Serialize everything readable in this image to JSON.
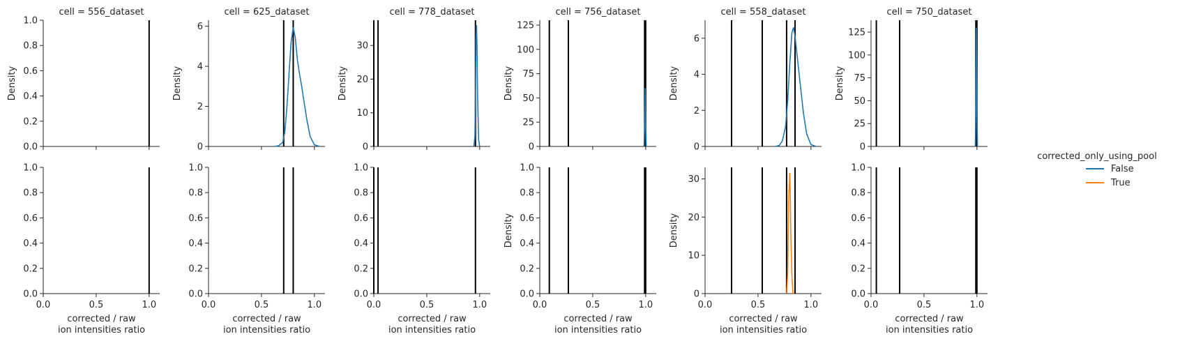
{
  "colors": {
    "false_series": "#1f77b4",
    "true_series": "#ff7f0e",
    "vline": "#000000",
    "axis": "#262626"
  },
  "legend": {
    "title": "corrected_only_using_pool",
    "entries": [
      {
        "label": "False",
        "color": "#1f77b4"
      },
      {
        "label": "True",
        "color": "#ff7f0e"
      }
    ],
    "placement": "right"
  },
  "chart_data": {
    "type": "line",
    "kind": "facet-grid density (KDE)",
    "grid": false,
    "x_range": [
      0,
      1.1
    ],
    "x_ticks": [
      0.0,
      0.5,
      1.0
    ],
    "x_tick_labels": [
      "0.0",
      "0.5",
      "1.0"
    ],
    "xlabel": "corrected / raw\nion intensities ratio",
    "ylabel": "Density",
    "columns": [
      {
        "title": "cell = 556_dataset",
        "vlines": [
          1.0
        ],
        "rows": [
          {
            "ylim": [
              0,
              1
            ],
            "y_ticks": [
              0,
              0.2,
              0.4,
              0.6,
              0.8,
              1.0
            ],
            "y_tick_labels": [
              "0.0",
              "0.2",
              "0.4",
              "0.6",
              "0.8",
              "1.0"
            ],
            "show_ylabel": true,
            "curves": []
          },
          {
            "ylim": [
              0,
              1
            ],
            "y_ticks": [
              0,
              0.2,
              0.4,
              0.6,
              0.8,
              1.0
            ],
            "y_tick_labels": [
              "0.0",
              "0.2",
              "0.4",
              "0.6",
              "0.8",
              "1.0"
            ],
            "show_ylabel": false,
            "curves": []
          }
        ]
      },
      {
        "title": "cell = 625_dataset",
        "vlines": [
          0.71,
          0.8
        ],
        "rows": [
          {
            "ylim": [
              0,
              6.3
            ],
            "y_ticks": [
              0,
              2,
              4,
              6
            ],
            "y_tick_labels": [
              "0",
              "2",
              "4",
              "6"
            ],
            "show_ylabel": true,
            "curves": [
              {
                "series": "False",
                "x": [
                  0.62,
                  0.66,
                  0.7,
                  0.72,
                  0.74,
                  0.76,
                  0.78,
                  0.8,
                  0.82,
                  0.84,
                  0.86,
                  0.88,
                  0.9,
                  0.93,
                  0.96,
                  1.0,
                  1.05
                ],
                "y": [
                  0,
                  0.03,
                  0.2,
                  0.7,
                  1.9,
                  3.6,
                  5.2,
                  5.95,
                  5.4,
                  4.3,
                  3.6,
                  3.0,
                  2.3,
                  1.3,
                  0.5,
                  0.08,
                  0
                ]
              }
            ]
          },
          {
            "ylim": [
              0,
              1
            ],
            "y_ticks": [
              0,
              0.2,
              0.4,
              0.6,
              0.8,
              1.0
            ],
            "y_tick_labels": [
              "0.0",
              "0.2",
              "0.4",
              "0.6",
              "0.8",
              "1.0"
            ],
            "show_ylabel": false,
            "curves": []
          }
        ]
      },
      {
        "title": "cell = 778_dataset",
        "vlines": [
          0.0,
          0.04,
          0.96
        ],
        "rows": [
          {
            "ylim": [
              0,
              37.5
            ],
            "y_ticks": [
              0,
              10,
              20,
              30
            ],
            "y_tick_labels": [
              "0",
              "10",
              "20",
              "30"
            ],
            "show_ylabel": true,
            "curves": [
              {
                "series": "False",
                "x": [
                  0.945,
                  0.955,
                  0.96,
                  0.965,
                  0.97,
                  0.975,
                  0.98,
                  0.99,
                  1.0
                ],
                "y": [
                  0,
                  3,
                  15,
                  32,
                  36,
                  30,
                  15,
                  2,
                  0
                ]
              }
            ]
          },
          {
            "ylim": [
              0,
              1
            ],
            "y_ticks": [
              0,
              0.2,
              0.4,
              0.6,
              0.8,
              1.0
            ],
            "y_tick_labels": [
              "0.0",
              "0.2",
              "0.4",
              "0.6",
              "0.8",
              "1.0"
            ],
            "show_ylabel": false,
            "curves": []
          }
        ]
      },
      {
        "title": "cell = 756_dataset",
        "vlines": [
          0.09,
          0.27,
          0.99,
          1.0
        ],
        "rows": [
          {
            "ylim": [
              0,
              130
            ],
            "y_ticks": [
              0,
              25,
              50,
              75,
              100,
              125
            ],
            "y_tick_labels": [
              "0",
              "25",
              "50",
              "75",
              "100",
              "125"
            ],
            "show_ylabel": true,
            "curves": [
              {
                "series": "False",
                "x": [
                  0.985,
                  0.99,
                  0.995,
                  1.0,
                  1.005
                ],
                "y": [
                  0,
                  20,
                  60,
                  20,
                  0
                ]
              }
            ]
          },
          {
            "ylim": [
              0,
              1
            ],
            "y_ticks": [
              0,
              0.2,
              0.4,
              0.6,
              0.8,
              1.0
            ],
            "y_tick_labels": [
              "0.0",
              "0.2",
              "0.4",
              "0.6",
              "0.8",
              "1.0"
            ],
            "show_ylabel": true,
            "curves": []
          }
        ]
      },
      {
        "title": "cell = 558_dataset",
        "vlines": [
          0.25,
          0.54,
          0.77,
          0.85
        ],
        "rows": [
          {
            "ylim": [
              0,
              7
            ],
            "y_ticks": [
              0,
              2,
              4,
              6
            ],
            "y_tick_labels": [
              "0",
              "2",
              "4",
              "6"
            ],
            "show_ylabel": true,
            "curves": [
              {
                "series": "False",
                "x": [
                  0.66,
                  0.7,
                  0.73,
                  0.76,
                  0.78,
                  0.8,
                  0.82,
                  0.835,
                  0.85,
                  0.87,
                  0.9,
                  0.93,
                  0.96,
                  1.0,
                  1.05
                ],
                "y": [
                  0,
                  0.05,
                  0.3,
                  1.1,
                  2.5,
                  4.6,
                  6.3,
                  6.6,
                  6.1,
                  5.0,
                  3.4,
                  1.8,
                  0.7,
                  0.1,
                  0
                ]
              }
            ]
          },
          {
            "ylim": [
              0,
              33
            ],
            "y_ticks": [
              0,
              10,
              20,
              30
            ],
            "y_tick_labels": [
              "0",
              "10",
              "20",
              "30"
            ],
            "show_ylabel": true,
            "curves": [
              {
                "series": "True",
                "x": [
                  0.77,
                  0.78,
                  0.785,
                  0.79,
                  0.8,
                  0.805,
                  0.81,
                  0.82,
                  0.83
                ],
                "y": [
                  0,
                  5,
                  15,
                  25,
                  31.5,
                  25,
                  15,
                  5,
                  0
                ]
              }
            ]
          }
        ]
      },
      {
        "title": "cell = 750_dataset",
        "vlines": [
          0.05,
          0.27,
          0.99,
          1.0
        ],
        "rows": [
          {
            "ylim": [
              0,
              138
            ],
            "y_ticks": [
              0,
              25,
              50,
              75,
              100,
              125
            ],
            "y_tick_labels": [
              "0",
              "25",
              "50",
              "75",
              "100",
              "125"
            ],
            "show_ylabel": true,
            "curves": [
              {
                "series": "False",
                "x": [
                  0.985,
                  0.99,
                  0.995,
                  1.0,
                  1.005
                ],
                "y": [
                  0,
                  40,
                  130,
                  40,
                  0
                ]
              }
            ]
          },
          {
            "ylim": [
              0,
              1
            ],
            "y_ticks": [
              0,
              0.2,
              0.4,
              0.6,
              0.8,
              1.0
            ],
            "y_tick_labels": [
              "0.0",
              "0.2",
              "0.4",
              "0.6",
              "0.8",
              "1.0"
            ],
            "show_ylabel": false,
            "curves": []
          }
        ]
      }
    ]
  }
}
